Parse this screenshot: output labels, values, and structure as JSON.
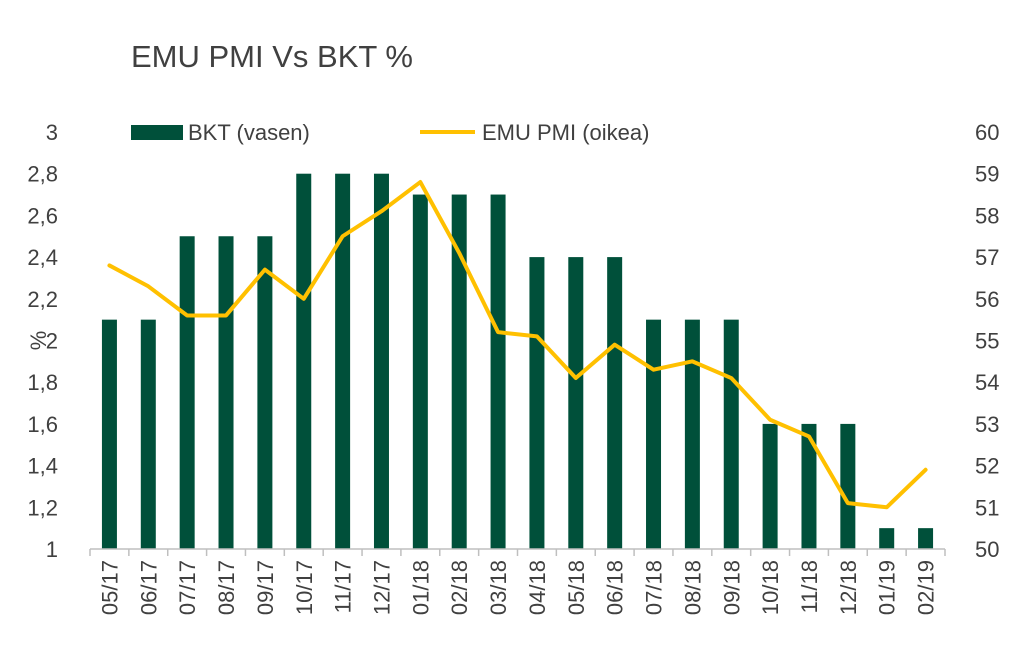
{
  "chart_data": {
    "type": "bar",
    "title": "EMU PMI Vs BKT %",
    "ylabel": "%",
    "y2label": "",
    "categories": [
      "05/17",
      "06/17",
      "07/17",
      "08/17",
      "09/17",
      "10/17",
      "11/17",
      "12/17",
      "01/18",
      "02/18",
      "03/18",
      "04/18",
      "05/18",
      "06/18",
      "07/18",
      "08/18",
      "09/18",
      "10/18",
      "11/18",
      "12/18",
      "01/19",
      "02/19"
    ],
    "ylim": [
      1,
      3
    ],
    "y2lim": [
      50,
      60
    ],
    "yticks": [
      "1",
      "1,2",
      "1,4",
      "1,6",
      "1,8",
      "2",
      "2,2",
      "2,4",
      "2,6",
      "2,8",
      "3"
    ],
    "y2ticks": [
      "50",
      "51",
      "52",
      "53",
      "54",
      "55",
      "56",
      "57",
      "58",
      "59",
      "60"
    ],
    "legend_position": "top",
    "grid": false,
    "series": [
      {
        "name": "BKT (vasen)",
        "type": "bar",
        "axis": "left",
        "color": "#00503A",
        "values": [
          2.1,
          2.1,
          2.5,
          2.5,
          2.5,
          2.8,
          2.8,
          2.8,
          2.7,
          2.7,
          2.7,
          2.4,
          2.4,
          2.4,
          2.1,
          2.1,
          2.1,
          1.6,
          1.6,
          1.6,
          1.1,
          1.1
        ]
      },
      {
        "name": "EMU PMI (oikea)",
        "type": "line",
        "axis": "right",
        "color": "#FFC000",
        "values": [
          56.8,
          56.3,
          55.6,
          55.6,
          56.7,
          56.0,
          57.5,
          58.1,
          58.8,
          57.1,
          55.2,
          55.1,
          54.1,
          54.9,
          54.3,
          54.5,
          54.1,
          53.1,
          52.7,
          51.1,
          51.0,
          51.9
        ]
      }
    ]
  }
}
